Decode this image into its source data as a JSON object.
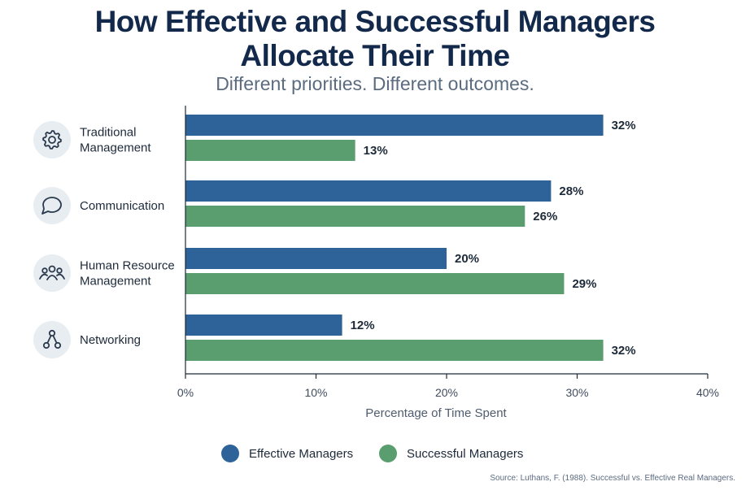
{
  "header": {
    "title_line1": "How Effective and Successful Managers",
    "title_line2": "Allocate Their Time",
    "subtitle": "Different priorities. Different outcomes."
  },
  "colors": {
    "effective": "#2e6399",
    "successful": "#5a9e6f",
    "icon_bg": "#e8edf2",
    "icon_stroke": "#2b3a4e"
  },
  "source": "Source: Luthans, F. (1988). Successful vs. Effective Real Managers.",
  "chart_data": {
    "type": "bar",
    "orientation": "horizontal",
    "categories": [
      {
        "lines": [
          "Traditional",
          "Management"
        ],
        "icon": "gear-icon"
      },
      {
        "lines": [
          "Communication"
        ],
        "icon": "speech-bubble-icon"
      },
      {
        "lines": [
          "Human Resource",
          "Management"
        ],
        "icon": "people-group-icon"
      },
      {
        "lines": [
          "Networking"
        ],
        "icon": "network-nodes-icon"
      }
    ],
    "series": [
      {
        "name": "Effective Managers",
        "values": [
          32,
          28,
          20,
          12
        ],
        "labels": [
          "32%",
          "28%",
          "20%",
          "12%"
        ]
      },
      {
        "name": "Successful Managers",
        "values": [
          13,
          26,
          29,
          32
        ],
        "labels": [
          "13%",
          "26%",
          "29%",
          "32%"
        ]
      }
    ],
    "xlim": [
      0,
      40
    ],
    "xticks": [
      0,
      10,
      20,
      30,
      40
    ],
    "xtick_labels": [
      "0%",
      "10%",
      "20%",
      "30%",
      "40%"
    ],
    "xlabel": "Percentage of Time Spent",
    "grid": false,
    "legend_position": "bottom-center"
  }
}
